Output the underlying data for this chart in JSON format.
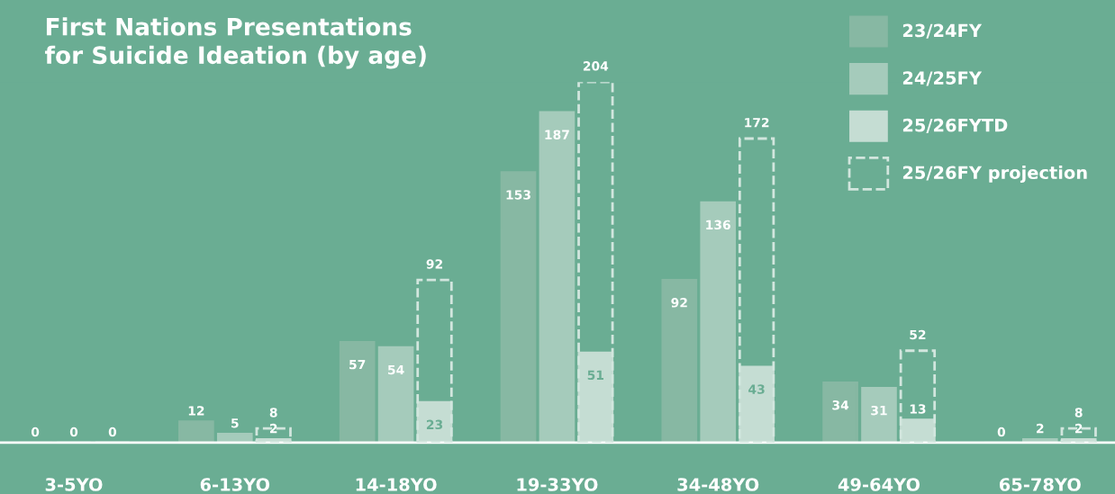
{
  "chart_data": {
    "type": "bar",
    "title": "First Nations Presentations\nfor Suicide Ideation (by age)",
    "categories": [
      "3-5YO",
      "6-13YO",
      "14-18YO",
      "19-33YO",
      "34-48YO",
      "49-64YO",
      "65-78YO"
    ],
    "series": [
      {
        "name": "23/24FY",
        "color": "#87b8a3",
        "values": [
          0,
          12,
          57,
          153,
          92,
          34,
          0
        ]
      },
      {
        "name": "24/25FY",
        "color": "#a5cbbb",
        "values": [
          0,
          5,
          54,
          187,
          136,
          31,
          2
        ]
      },
      {
        "name": "25/26FYTD",
        "color": "#c5ddd3",
        "values": [
          0,
          2,
          23,
          51,
          43,
          13,
          2
        ]
      },
      {
        "name": "25/26FY projection",
        "color": "#d2e6de",
        "line_style": "dashed",
        "values": [
          null,
          8,
          92,
          204,
          172,
          52,
          8
        ]
      }
    ],
    "data_labels": true,
    "legend": "top right",
    "grid": false
  }
}
